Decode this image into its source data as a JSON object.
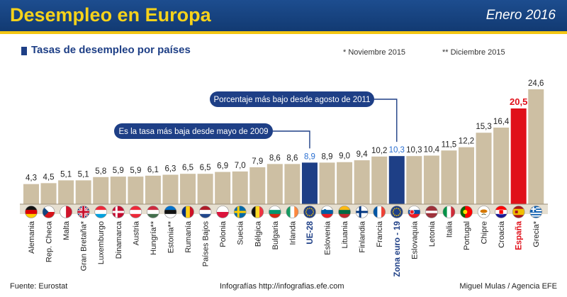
{
  "header": {
    "title": "Desempleo en Europa",
    "date": "Enero 2016"
  },
  "subtitle": "Tasas de desempleo por países",
  "notes": {
    "nov": "* Noviembre 2015",
    "dec": "** Diciembre 2015"
  },
  "callouts": {
    "ue28": "Es la tasa más baja desde mayo de 2009",
    "eurozone": "Porcentaje más bajo desde agosto de 2011"
  },
  "footer": {
    "source": "Fuente: Eurostat",
    "web": "Infografías http://infografias.efe.com",
    "credit": "Miguel Mulas / Agencia EFE"
  },
  "colors": {
    "normal": "#cdbfa3",
    "highlight": "#1e3f86",
    "spain": "#e0101a",
    "header": "#1d4d8f",
    "title": "#f6d21a"
  },
  "chart_data": {
    "type": "bar",
    "title": "Tasas de desempleo por países",
    "unit": "%",
    "categories": [
      "Alemania",
      "Rep. Checa",
      "Malta",
      "Gran Bretaña*",
      "Luxemburgo",
      "Dinamarca",
      "Austria",
      "Hungría**",
      "Estonia**",
      "Rumanía",
      "Países Bajos",
      "Polonia",
      "Suecia",
      "Bélgica",
      "Bulgaria",
      "Irlanda",
      "UE-28",
      "Eslovenia",
      "Lituania",
      "Finlandia",
      "Francia",
      "Zona euro - 19",
      "Eslovaquia",
      "Letonia",
      "Italia",
      "Portugal",
      "Chipre",
      "Croacia",
      "España",
      "Grecia*"
    ],
    "value_labels": [
      "4,3",
      "4,5",
      "5,1",
      "5,1",
      "5,8",
      "5,9",
      "5,9",
      "6,1",
      "6,3",
      "6,5",
      "6,5",
      "6,9",
      "7,0",
      "7,9",
      "8,6",
      "8,6",
      "8,9",
      "8,9",
      "9,0",
      "9,4",
      "10,2",
      "10,3",
      "10,3",
      "10,4",
      "11,5",
      "12,2",
      "15,3",
      "16,4",
      "20,5",
      "24,6"
    ],
    "values": [
      4.3,
      4.5,
      5.1,
      5.1,
      5.8,
      5.9,
      5.9,
      6.1,
      6.3,
      6.5,
      6.5,
      6.9,
      7.0,
      7.9,
      8.6,
      8.6,
      8.9,
      8.9,
      9.0,
      9.4,
      10.2,
      10.3,
      10.3,
      10.4,
      11.5,
      12.2,
      15.3,
      16.4,
      20.5,
      24.6
    ],
    "highlight": [
      "UE-28",
      "Zona euro - 19"
    ],
    "accent": [
      "España"
    ],
    "ylim": [
      0,
      24.6
    ],
    "flags": [
      "de",
      "cz",
      "mt",
      "gb",
      "lu",
      "dk",
      "at",
      "hu",
      "ee",
      "ro",
      "nl",
      "pl",
      "se",
      "be",
      "bg",
      "ie",
      "eu",
      "si",
      "lt",
      "fi",
      "fr",
      "eu",
      "sk",
      "lv",
      "it",
      "pt",
      "cy",
      "hr",
      "es",
      "gr"
    ]
  }
}
